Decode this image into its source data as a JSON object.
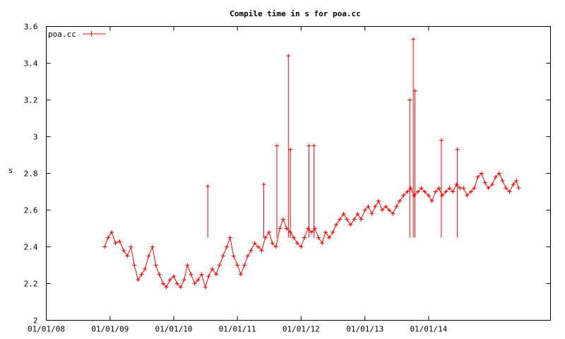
{
  "chart_data": {
    "type": "line",
    "title": "Compile time in s for poa.cc",
    "xlabel": "",
    "ylabel": "s",
    "x_axis_type": "date",
    "xlim": [
      "2008-01-01",
      "2015-12-01"
    ],
    "ylim": [
      2.0,
      3.6
    ],
    "x_ticks": [
      "01/01/08",
      "01/01/09",
      "01/01/10",
      "01/01/11",
      "01/01/12",
      "01/01/13",
      "01/01/14"
    ],
    "y_ticks": [
      "2",
      "2.2",
      "2.4",
      "2.6",
      "2.8",
      "3",
      "3.2",
      "3.4",
      "3.6"
    ],
    "grid": false,
    "legend_position": "top-left",
    "colors": {
      "series": "#ff0000",
      "axes": "#000000",
      "background": "#ffffff"
    },
    "marker": "plus",
    "series": [
      {
        "name": "poa.cc",
        "x": [
          "2008-12-01",
          "2008-12-20",
          "2009-01-10",
          "2009-02-01",
          "2009-02-25",
          "2009-03-20",
          "2009-04-10",
          "2009-05-01",
          "2009-05-20",
          "2009-06-10",
          "2009-07-01",
          "2009-07-20",
          "2009-08-10",
          "2009-09-01",
          "2009-09-20",
          "2009-10-10",
          "2009-11-01",
          "2009-11-20",
          "2009-12-10",
          "2010-01-01",
          "2010-01-20",
          "2010-02-10",
          "2010-03-01",
          "2010-03-20",
          "2010-04-10",
          "2010-05-01",
          "2010-05-20",
          "2010-06-10",
          "2010-07-01",
          "2010-07-20",
          "2010-08-10",
          "2010-09-01",
          "2010-09-20",
          "2010-10-10",
          "2010-11-01",
          "2010-11-20",
          "2010-12-10",
          "2011-01-01",
          "2011-01-20",
          "2011-02-10",
          "2011-03-01",
          "2011-03-20",
          "2011-04-10",
          "2011-05-01",
          "2011-05-20",
          "2011-06-10",
          "2011-07-01",
          "2011-07-20",
          "2011-08-10",
          "2011-09-01",
          "2011-09-20",
          "2011-10-10",
          "2011-11-01",
          "2011-11-20",
          "2011-12-10",
          "2012-01-01",
          "2012-01-20",
          "2012-02-10",
          "2012-03-01",
          "2012-03-20",
          "2012-04-10",
          "2012-05-01",
          "2012-05-20",
          "2012-06-10",
          "2012-07-01",
          "2012-07-20",
          "2012-08-10",
          "2012-09-01",
          "2012-09-20",
          "2012-10-10",
          "2012-11-01",
          "2012-11-20",
          "2012-12-10",
          "2013-01-01",
          "2013-01-20",
          "2013-02-10",
          "2013-03-01",
          "2013-03-20",
          "2013-04-10",
          "2013-05-01",
          "2013-05-20",
          "2013-06-10",
          "2013-07-01",
          "2013-07-20",
          "2013-08-10",
          "2013-09-01",
          "2013-09-20",
          "2013-10-10",
          "2013-11-01",
          "2013-11-20",
          "2013-12-10",
          "2014-01-01",
          "2014-01-20",
          "2014-02-10",
          "2014-03-01",
          "2014-03-20",
          "2014-04-10",
          "2014-05-01",
          "2014-05-20",
          "2014-06-10",
          "2014-07-01",
          "2014-07-20",
          "2014-08-10",
          "2014-09-01",
          "2014-09-20",
          "2014-10-10",
          "2014-11-01",
          "2014-11-20",
          "2014-12-10",
          "2015-01-01",
          "2015-01-20",
          "2015-02-10",
          "2015-03-01",
          "2015-03-20",
          "2015-04-10",
          "2015-05-01",
          "2015-05-20",
          "2015-06-01"
        ],
        "y": [
          2.4,
          2.45,
          2.48,
          2.42,
          2.43,
          2.38,
          2.35,
          2.4,
          2.3,
          2.22,
          2.25,
          2.28,
          2.35,
          2.4,
          2.3,
          2.25,
          2.2,
          2.18,
          2.22,
          2.24,
          2.2,
          2.18,
          2.22,
          2.3,
          2.25,
          2.2,
          2.22,
          2.25,
          2.18,
          2.24,
          2.28,
          2.25,
          2.3,
          2.35,
          2.4,
          2.45,
          2.35,
          2.3,
          2.25,
          2.3,
          2.35,
          2.38,
          2.42,
          2.4,
          2.38,
          2.45,
          2.48,
          2.42,
          2.4,
          2.5,
          2.55,
          2.5,
          2.48,
          2.45,
          2.42,
          2.4,
          2.45,
          2.5,
          2.48,
          2.5,
          2.45,
          2.42,
          2.48,
          2.45,
          2.48,
          2.52,
          2.55,
          2.58,
          2.55,
          2.52,
          2.55,
          2.58,
          2.55,
          2.6,
          2.62,
          2.58,
          2.62,
          2.65,
          2.6,
          2.62,
          2.6,
          2.58,
          2.62,
          2.65,
          2.68,
          2.7,
          2.72,
          2.68,
          2.7,
          2.72,
          2.7,
          2.68,
          2.65,
          2.7,
          2.72,
          2.68,
          2.7,
          2.72,
          2.7,
          2.74,
          2.72,
          2.72,
          2.68,
          2.7,
          2.72,
          2.78,
          2.8,
          2.75,
          2.72,
          2.74,
          2.78,
          2.8,
          2.76,
          2.72,
          2.7,
          2.74,
          2.76,
          2.72
        ]
      }
    ],
    "notable_spikes": [
      {
        "x": "2010-07-15",
        "y": 2.73
      },
      {
        "x": "2011-06-01",
        "y": 2.74
      },
      {
        "x": "2011-08-15",
        "y": 2.95
      },
      {
        "x": "2011-10-20",
        "y": 3.44
      },
      {
        "x": "2011-11-01",
        "y": 2.93
      },
      {
        "x": "2012-02-15",
        "y": 2.95
      },
      {
        "x": "2012-03-15",
        "y": 2.95
      },
      {
        "x": "2013-09-15",
        "y": 3.2
      },
      {
        "x": "2013-10-05",
        "y": 3.53
      },
      {
        "x": "2013-10-15",
        "y": 3.25
      },
      {
        "x": "2014-03-15",
        "y": 2.98
      },
      {
        "x": "2014-06-15",
        "y": 2.93
      }
    ]
  }
}
